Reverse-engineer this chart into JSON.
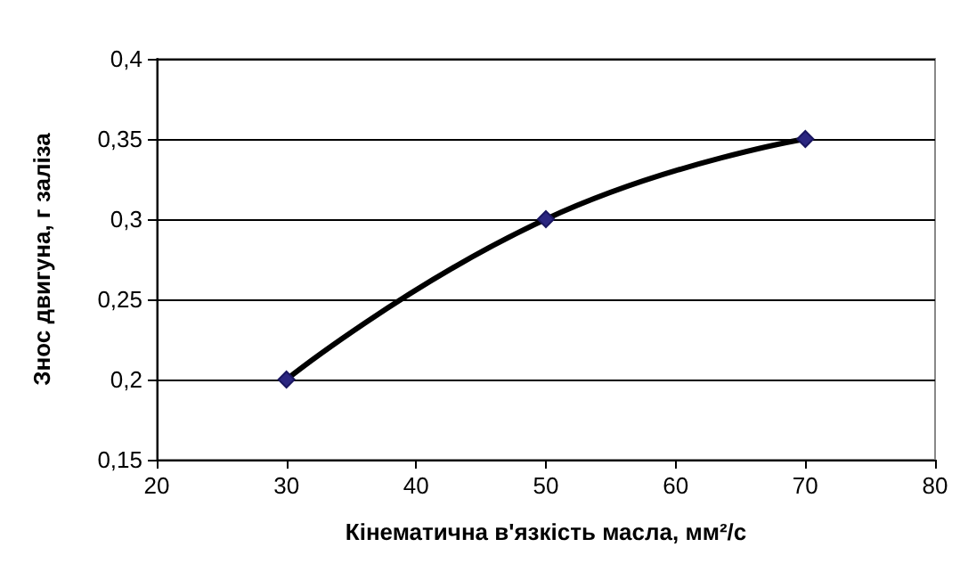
{
  "chart_data": {
    "type": "line",
    "xlabel": "Кінематична в'язкість масла, мм²/с",
    "ylabel": "Знос двигуна, г заліза",
    "series": [
      {
        "color": "#000000",
        "x": [
          30,
          50,
          70
        ],
        "values": [
          0.2,
          0.3,
          0.35
        ]
      }
    ],
    "xlim": [
      20,
      80
    ],
    "xticks": [
      20,
      30,
      40,
      50,
      60,
      70,
      80
    ],
    "ylim": [
      0.15,
      0.4
    ],
    "yticks": [
      {
        "value": 0.15,
        "label": "0,15"
      },
      {
        "value": 0.2,
        "label": "0,2"
      },
      {
        "value": 0.25,
        "label": "0,25"
      },
      {
        "value": 0.3,
        "label": "0,3"
      },
      {
        "value": 0.35,
        "label": "0,35"
      },
      {
        "value": 0.4,
        "label": "0,4"
      }
    ],
    "grid": "y",
    "marker": "diamond",
    "line_style": "solid"
  }
}
